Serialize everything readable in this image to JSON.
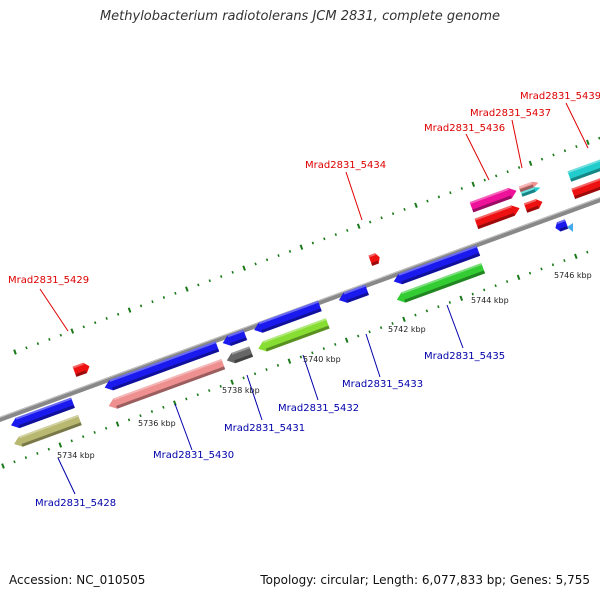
{
  "title": "Methylobacterium radiotolerans JCM 2831, complete genome",
  "footer": {
    "accession": "Accession: NC_010505",
    "summary": "Topology: circular; Length: 6,077,833 bp; Genes: 5,755"
  },
  "kbp_labels": [
    "5734 kbp",
    "5736 kbp",
    "5738 kbp",
    "5740 kbp",
    "5742 kbp",
    "5744 kbp",
    "5746 kbp"
  ],
  "genes_forward": [
    {
      "name": "Mrad2831_5429"
    },
    {
      "name": "Mrad2831_5434"
    },
    {
      "name": "Mrad2831_5436"
    },
    {
      "name": "Mrad2831_5437"
    },
    {
      "name": "Mrad2831_5439"
    }
  ],
  "genes_reverse": [
    {
      "name": "Mrad2831_5428"
    },
    {
      "name": "Mrad2831_5430"
    },
    {
      "name": "Mrad2831_5431"
    },
    {
      "name": "Mrad2831_5432"
    },
    {
      "name": "Mrad2831_5433"
    },
    {
      "name": "Mrad2831_5435"
    }
  ],
  "colors": {
    "forward_label": "#dd0000",
    "reverse_label": "#0000aa",
    "backbone": "#8a8a8a",
    "tick": "#1a7a1a",
    "blue": "#1a1aee",
    "red": "#ee1111",
    "pink": "#ee9090",
    "khaki": "#b8b870",
    "gray": "#666666",
    "lime": "#88dd33",
    "green": "#33cc33",
    "magenta": "#ee1199",
    "cyan": "#22cccc"
  }
}
